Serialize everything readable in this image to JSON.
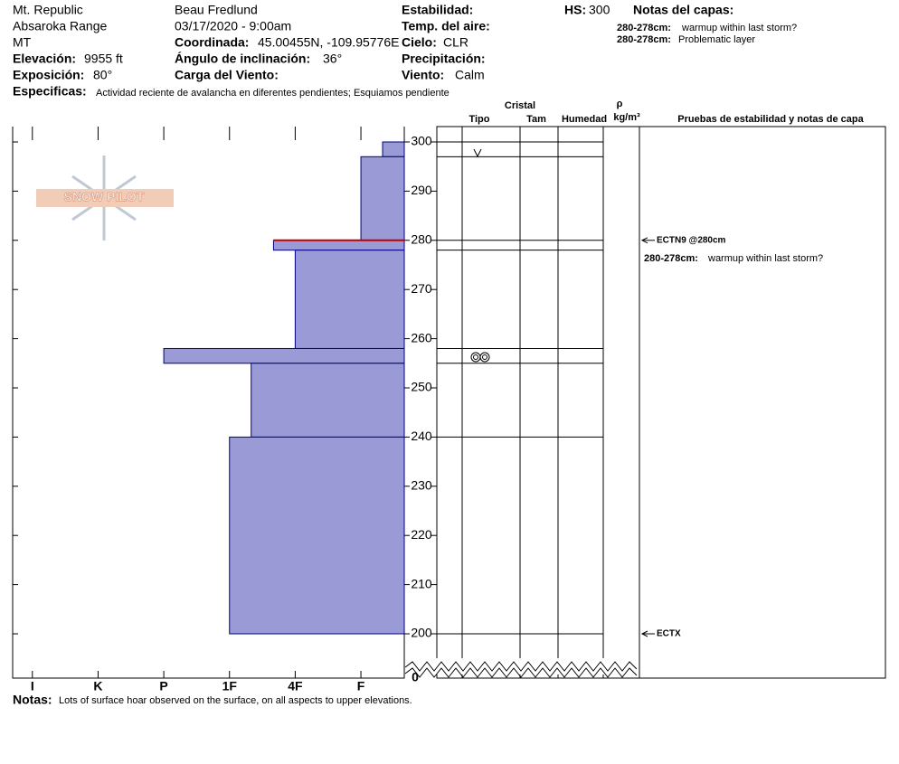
{
  "header": {
    "location": [
      "Mt. Republic",
      "Absaroka Range",
      "MT"
    ],
    "elevation": {
      "label": "Elevación:",
      "value": "9955 ft"
    },
    "exposure": {
      "label": "Exposición:",
      "value": "80°"
    },
    "specifics": {
      "label": "Especificas:",
      "value": "Actividad reciente de avalancha en diferentes pendientes;  Esquiamos pendiente"
    },
    "observer": "Beau  Fredlund",
    "datetime": "03/17/2020 - 9:00am",
    "coordinates": {
      "label": "Coordinada:",
      "value": "45.00455N, -109.95776E"
    },
    "slope_angle": {
      "label": "Ángulo de inclinación:",
      "value": "36°"
    },
    "wind_loading": {
      "label": "Carga del Viento:"
    },
    "stability": {
      "label": "Estabilidad:"
    },
    "air_temp": {
      "label": "Temp. del aire:"
    },
    "sky": {
      "label": "Cielo:",
      "value": "CLR"
    },
    "precipitation": {
      "label": "Precipitación:"
    },
    "wind": {
      "label": "Viento:",
      "value": "Calm"
    },
    "hs": {
      "label": "HS:",
      "value": "300"
    },
    "layer_notes_title": "Notas del capas:",
    "layer_notes": [
      {
        "label": "280-278cm:",
        "value": "warmup within last storm?"
      },
      {
        "label": "280-278cm:",
        "value": "Problematic layer"
      }
    ]
  },
  "logo": "SNOW PILOT",
  "columns": {
    "crystal": "Cristal",
    "type": "Tipo",
    "size": "Tam",
    "moisture": "Humedad",
    "density_symbol": "ρ",
    "density_unit": "kg/m³",
    "tests": "Pruebas de estabilidad y notas de capa"
  },
  "hardness_axis": {
    "lim": [
      6.3,
      0.34
    ],
    "ticks": [
      {
        "value": 6,
        "label": "I"
      },
      {
        "value": 5,
        "label": "K"
      },
      {
        "value": 4,
        "label": "P"
      },
      {
        "value": 3,
        "label": "1F"
      },
      {
        "value": 2,
        "label": "4F"
      },
      {
        "value": 1,
        "label": "F"
      }
    ]
  },
  "height_axis": {
    "lim": [
      200,
      300
    ],
    "ticks": [
      300,
      290,
      280,
      270,
      260,
      250,
      240,
      230,
      220,
      210,
      200
    ],
    "base": 0
  },
  "layers": [
    {
      "top": 300,
      "bottom": 297,
      "hardness": 0.67
    },
    {
      "top": 297,
      "bottom": 280,
      "hardness": 1
    },
    {
      "top": 280,
      "bottom": 278,
      "hardness": 2.33
    },
    {
      "top": 278,
      "bottom": 258,
      "hardness": 2
    },
    {
      "top": 258,
      "bottom": 255,
      "hardness": 4
    },
    {
      "top": 255,
      "bottom": 240,
      "hardness": 2.67
    },
    {
      "top": 240,
      "bottom": 200,
      "hardness": 3
    }
  ],
  "critical_layer": 280,
  "tests": [
    {
      "height": 280,
      "label": "ECTN9 @280cm"
    },
    {
      "height": 200,
      "label": "ECTX"
    }
  ],
  "layer_note": {
    "label": "280-278cm:",
    "value": "warmup within last storm?"
  },
  "notes": {
    "label": "Notas:",
    "value": "Lots of surface hoar observed on the surface, on all aspects to upper elevations."
  }
}
